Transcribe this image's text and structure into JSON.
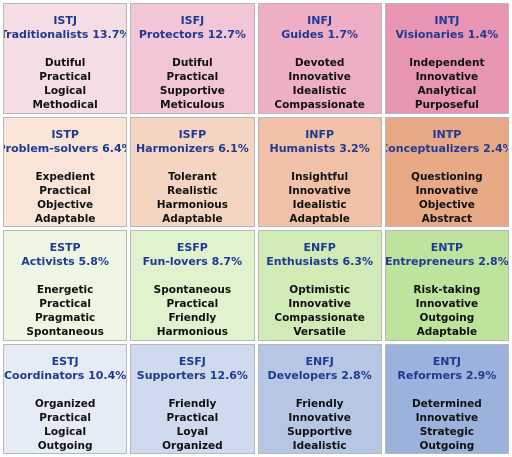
{
  "cells": [
    {
      "code": "ISTJ",
      "title": "Traditionalists 13.7%",
      "traits": [
        "Dutiful",
        "Practical",
        "Logical",
        "Methodical"
      ],
      "color": "#f5dde5"
    },
    {
      "code": "ISFJ",
      "title": "Protectors 12.7%",
      "traits": [
        "Dutiful",
        "Practical",
        "Supportive",
        "Meticulous"
      ],
      "color": "#f2c6d6"
    },
    {
      "code": "INFJ",
      "title": "Guides 1.7%",
      "traits": [
        "Devoted",
        "Innovative",
        "Idealistic",
        "Compassionate"
      ],
      "color": "#eeaec6"
    },
    {
      "code": "INTJ",
      "title": "Visionaries 1.4%",
      "traits": [
        "Independent",
        "Innovative",
        "Analytical",
        "Purposeful"
      ],
      "color": "#e895b4"
    },
    {
      "code": "ISTP",
      "title": "Problem-solvers 6.4%",
      "traits": [
        "Expedient",
        "Practical",
        "Objective",
        "Adaptable"
      ],
      "color": "#f8e5d8"
    },
    {
      "code": "ISFP",
      "title": "Harmonizers 6.1%",
      "traits": [
        "Tolerant",
        "Realistic",
        "Harmonious",
        "Adaptable"
      ],
      "color": "#f5d5c1"
    },
    {
      "code": "INFP",
      "title": "Humanists 3.2%",
      "traits": [
        "Insightful",
        "Innovative",
        "Idealistic",
        "Adaptable"
      ],
      "color": "#f0c1a6"
    },
    {
      "code": "INTP",
      "title": "Conceptualizers 2.4%",
      "traits": [
        "Questioning",
        "Innovative",
        "Objective",
        "Abstract"
      ],
      "color": "#e8a987"
    },
    {
      "code": "ESTP",
      "title": "Activists 5.8%",
      "traits": [
        "Energetic",
        "Practical",
        "Pragmatic",
        "Spontaneous"
      ],
      "color": "#eef7e3"
    },
    {
      "code": "ESFP",
      "title": "Fun-lovers 8.7%",
      "traits": [
        "Spontaneous",
        "Practical",
        "Friendly",
        "Harmonious"
      ],
      "color": "#e1f2cf"
    },
    {
      "code": "ENFP",
      "title": "Enthusiasts 6.3%",
      "traits": [
        "Optimistic",
        "Innovative",
        "Compassionate",
        "Versatile"
      ],
      "color": "#d1ebb7"
    },
    {
      "code": "ENTP",
      "title": "Entrepreneurs 2.8%",
      "traits": [
        "Risk-taking",
        "Innovative",
        "Outgoing",
        "Adaptable"
      ],
      "color": "#bde39c"
    },
    {
      "code": "ESTJ",
      "title": "Coordinators 10.4%",
      "traits": [
        "Organized",
        "Practical",
        "Logical",
        "Outgoing"
      ],
      "color": "#e6ecf6"
    },
    {
      "code": "ESFJ",
      "title": "Supporters 12.6%",
      "traits": [
        "Friendly",
        "Practical",
        "Loyal",
        "Organized"
      ],
      "color": "#cfdaee"
    },
    {
      "code": "ENFJ",
      "title": "Developers 2.8%",
      "traits": [
        "Friendly",
        "Innovative",
        "Supportive",
        "Idealistic"
      ],
      "color": "#b6c7e5"
    },
    {
      "code": "ENTJ",
      "title": "Reformers 2.9%",
      "traits": [
        "Determined",
        "Innovative",
        "Strategic",
        "Outgoing"
      ],
      "color": "#9bb2dc"
    }
  ]
}
